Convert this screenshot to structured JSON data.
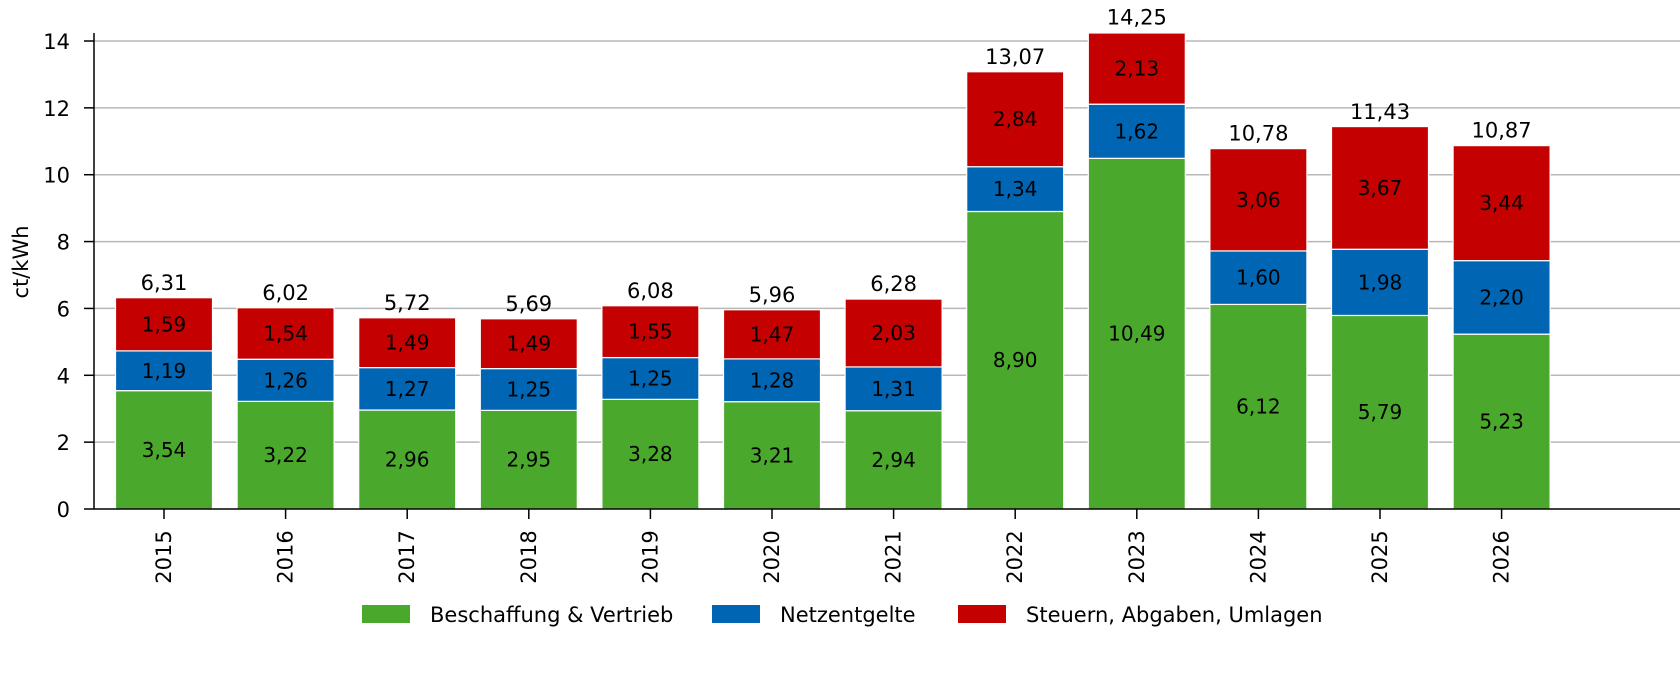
{
  "chart_data": {
    "type": "bar",
    "stacked": true,
    "title": "",
    "xlabel": "",
    "ylabel": "ct/kWh",
    "ylim": [
      0,
      14
    ],
    "yticks": [
      0,
      2,
      4,
      6,
      8,
      10,
      12,
      14
    ],
    "grid": true,
    "legend_position": "bottom",
    "categories": [
      "2015",
      "2016",
      "2017",
      "2018",
      "2019",
      "2020",
      "2021",
      "2022",
      "2023",
      "2024",
      "2025",
      "2026"
    ],
    "series": [
      {
        "name": "Beschaffung & Vertrieb",
        "color": "#4aa82c",
        "values": [
          3.54,
          3.22,
          2.96,
          2.95,
          3.28,
          3.21,
          2.94,
          8.9,
          10.49,
          6.12,
          5.79,
          5.23
        ],
        "labels": [
          "3,54",
          "3,22",
          "2,96",
          "2,95",
          "3,28",
          "3,21",
          "2,94",
          "8,90",
          "10,49",
          "6,12",
          "5,79",
          "5,23"
        ]
      },
      {
        "name": "Netzentgelte",
        "color": "#0066b3",
        "values": [
          1.19,
          1.26,
          1.27,
          1.25,
          1.25,
          1.28,
          1.31,
          1.34,
          1.62,
          1.6,
          1.98,
          2.2
        ],
        "labels": [
          "1,19",
          "1,26",
          "1,27",
          "1,25",
          "1,25",
          "1,28",
          "1,31",
          "1,34",
          "1,62",
          "1,60",
          "1,98",
          "2,20"
        ]
      },
      {
        "name": "Steuern, Abgaben, Umlagen",
        "color": "#c40000",
        "values": [
          1.59,
          1.54,
          1.49,
          1.49,
          1.55,
          1.47,
          2.03,
          2.84,
          2.13,
          3.06,
          3.67,
          3.44
        ],
        "labels": [
          "1,59",
          "1,54",
          "1,49",
          "1,49",
          "1,55",
          "1,47",
          "2,03",
          "2,84",
          "2,13",
          "3,06",
          "3,67",
          "3,44"
        ]
      }
    ],
    "totals": [
      6.31,
      6.02,
      5.72,
      5.69,
      6.08,
      5.96,
      6.28,
      13.07,
      14.25,
      10.78,
      11.43,
      10.87
    ],
    "total_labels": [
      "6,31",
      "6,02",
      "5,72",
      "5,69",
      "6,08",
      "5,96",
      "6,28",
      "13,07",
      "14,25",
      "10,78",
      "11,43",
      "10,87"
    ]
  }
}
